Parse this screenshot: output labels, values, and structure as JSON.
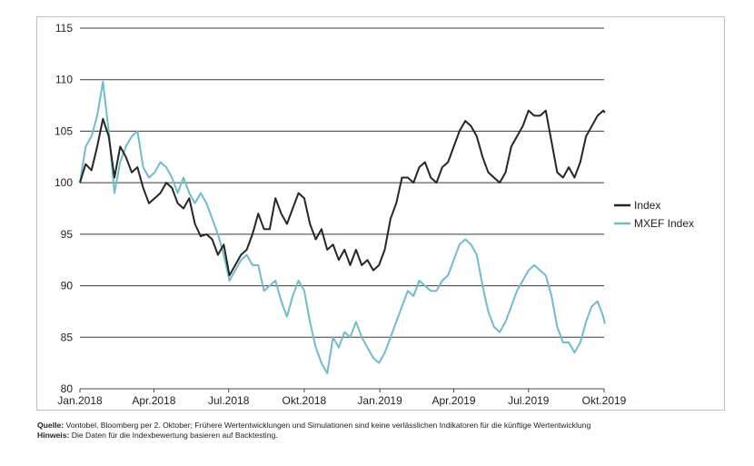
{
  "chart_data": {
    "type": "line",
    "title": "",
    "xlabel": "",
    "ylabel": "",
    "ylim": [
      80,
      115
    ],
    "y_ticks": [
      80,
      85,
      90,
      95,
      100,
      105,
      110,
      115
    ],
    "x_tick_labels": [
      "Jan.2018",
      "Apr.2018",
      "Jul.2018",
      "Okt.2018",
      "Jan.2019",
      "Apr.2019",
      "Jul.2019",
      "Okt.2019"
    ],
    "x_tick_dates": [
      "2018-01-01",
      "2018-04-01",
      "2018-07-01",
      "2018-10-01",
      "2019-01-01",
      "2019-04-01",
      "2019-07-01",
      "2019-10-01"
    ],
    "grid": "horizontal",
    "legend_position": "right",
    "series": [
      {
        "name": "Index",
        "color": "#262626",
        "points": [
          [
            "2018-01-01",
            100.0
          ],
          [
            "2018-01-08",
            101.8
          ],
          [
            "2018-01-15",
            101.2
          ],
          [
            "2018-01-22",
            103.5
          ],
          [
            "2018-01-29",
            106.2
          ],
          [
            "2018-02-05",
            104.5
          ],
          [
            "2018-02-12",
            100.5
          ],
          [
            "2018-02-19",
            103.5
          ],
          [
            "2018-02-26",
            102.5
          ],
          [
            "2018-03-05",
            101.0
          ],
          [
            "2018-03-12",
            101.5
          ],
          [
            "2018-03-19",
            99.5
          ],
          [
            "2018-03-26",
            98.0
          ],
          [
            "2018-04-02",
            98.5
          ],
          [
            "2018-04-09",
            99.0
          ],
          [
            "2018-04-16",
            100.0
          ],
          [
            "2018-04-23",
            99.5
          ],
          [
            "2018-04-30",
            98.0
          ],
          [
            "2018-05-07",
            97.5
          ],
          [
            "2018-05-14",
            98.5
          ],
          [
            "2018-05-21",
            96.0
          ],
          [
            "2018-05-28",
            94.8
          ],
          [
            "2018-06-04",
            95.0
          ],
          [
            "2018-06-11",
            94.5
          ],
          [
            "2018-06-18",
            93.0
          ],
          [
            "2018-06-25",
            94.0
          ],
          [
            "2018-07-02",
            91.0
          ],
          [
            "2018-07-09",
            92.0
          ],
          [
            "2018-07-16",
            93.0
          ],
          [
            "2018-07-23",
            93.5
          ],
          [
            "2018-07-30",
            95.0
          ],
          [
            "2018-08-06",
            97.0
          ],
          [
            "2018-08-13",
            95.5
          ],
          [
            "2018-08-20",
            95.5
          ],
          [
            "2018-08-27",
            98.5
          ],
          [
            "2018-09-03",
            97.0
          ],
          [
            "2018-09-10",
            96.0
          ],
          [
            "2018-09-17",
            97.5
          ],
          [
            "2018-09-24",
            99.0
          ],
          [
            "2018-10-01",
            98.5
          ],
          [
            "2018-10-08",
            96.0
          ],
          [
            "2018-10-15",
            94.5
          ],
          [
            "2018-10-22",
            95.5
          ],
          [
            "2018-10-29",
            93.5
          ],
          [
            "2018-11-05",
            94.0
          ],
          [
            "2018-11-12",
            92.5
          ],
          [
            "2018-11-19",
            93.5
          ],
          [
            "2018-11-26",
            92.0
          ],
          [
            "2018-12-03",
            93.5
          ],
          [
            "2018-12-10",
            92.0
          ],
          [
            "2018-12-17",
            92.5
          ],
          [
            "2018-12-24",
            91.5
          ],
          [
            "2018-12-31",
            92.0
          ],
          [
            "2019-01-07",
            93.5
          ],
          [
            "2019-01-14",
            96.5
          ],
          [
            "2019-01-21",
            98.0
          ],
          [
            "2019-01-28",
            100.5
          ],
          [
            "2019-02-04",
            100.5
          ],
          [
            "2019-02-11",
            100.0
          ],
          [
            "2019-02-18",
            101.5
          ],
          [
            "2019-02-25",
            102.0
          ],
          [
            "2019-03-04",
            100.5
          ],
          [
            "2019-03-11",
            100.0
          ],
          [
            "2019-03-18",
            101.5
          ],
          [
            "2019-03-25",
            102.0
          ],
          [
            "2019-04-01",
            103.5
          ],
          [
            "2019-04-08",
            105.0
          ],
          [
            "2019-04-15",
            106.0
          ],
          [
            "2019-04-22",
            105.5
          ],
          [
            "2019-04-29",
            104.5
          ],
          [
            "2019-05-06",
            102.5
          ],
          [
            "2019-05-13",
            101.0
          ],
          [
            "2019-05-20",
            100.5
          ],
          [
            "2019-05-27",
            100.0
          ],
          [
            "2019-06-03",
            101.0
          ],
          [
            "2019-06-10",
            103.5
          ],
          [
            "2019-06-17",
            104.5
          ],
          [
            "2019-06-24",
            105.5
          ],
          [
            "2019-07-01",
            107.0
          ],
          [
            "2019-07-08",
            106.5
          ],
          [
            "2019-07-15",
            106.5
          ],
          [
            "2019-07-22",
            107.0
          ],
          [
            "2019-07-29",
            104.0
          ],
          [
            "2019-08-05",
            101.0
          ],
          [
            "2019-08-12",
            100.5
          ],
          [
            "2019-08-19",
            101.5
          ],
          [
            "2019-08-26",
            100.5
          ],
          [
            "2019-09-02",
            102.0
          ],
          [
            "2019-09-09",
            104.5
          ],
          [
            "2019-09-16",
            105.5
          ],
          [
            "2019-09-23",
            106.5
          ],
          [
            "2019-09-30",
            107.0
          ],
          [
            "2019-10-02",
            106.8
          ]
        ]
      },
      {
        "name": "MXEF Index",
        "color": "#6fbccb",
        "points": [
          [
            "2018-01-01",
            100.0
          ],
          [
            "2018-01-08",
            103.5
          ],
          [
            "2018-01-15",
            104.5
          ],
          [
            "2018-01-22",
            106.5
          ],
          [
            "2018-01-29",
            109.8
          ],
          [
            "2018-02-05",
            105.0
          ],
          [
            "2018-02-12",
            99.0
          ],
          [
            "2018-02-19",
            102.0
          ],
          [
            "2018-02-26",
            103.5
          ],
          [
            "2018-03-05",
            104.5
          ],
          [
            "2018-03-12",
            105.0
          ],
          [
            "2018-03-19",
            101.5
          ],
          [
            "2018-03-26",
            100.5
          ],
          [
            "2018-04-02",
            101.0
          ],
          [
            "2018-04-09",
            102.0
          ],
          [
            "2018-04-16",
            101.5
          ],
          [
            "2018-04-23",
            100.5
          ],
          [
            "2018-04-30",
            99.0
          ],
          [
            "2018-05-07",
            100.5
          ],
          [
            "2018-05-14",
            99.0
          ],
          [
            "2018-05-21",
            98.0
          ],
          [
            "2018-05-28",
            99.0
          ],
          [
            "2018-06-04",
            98.0
          ],
          [
            "2018-06-11",
            96.5
          ],
          [
            "2018-06-18",
            95.0
          ],
          [
            "2018-06-25",
            93.0
          ],
          [
            "2018-07-02",
            90.5
          ],
          [
            "2018-07-09",
            91.5
          ],
          [
            "2018-07-16",
            92.5
          ],
          [
            "2018-07-23",
            93.0
          ],
          [
            "2018-07-30",
            92.0
          ],
          [
            "2018-08-06",
            92.0
          ],
          [
            "2018-08-13",
            89.5
          ],
          [
            "2018-08-20",
            90.0
          ],
          [
            "2018-08-27",
            90.5
          ],
          [
            "2018-09-03",
            88.5
          ],
          [
            "2018-09-10",
            87.0
          ],
          [
            "2018-09-17",
            89.0
          ],
          [
            "2018-09-24",
            90.5
          ],
          [
            "2018-10-01",
            89.5
          ],
          [
            "2018-10-08",
            86.5
          ],
          [
            "2018-10-15",
            84.0
          ],
          [
            "2018-10-22",
            82.5
          ],
          [
            "2018-10-29",
            81.5
          ],
          [
            "2018-11-05",
            85.0
          ],
          [
            "2018-11-12",
            84.0
          ],
          [
            "2018-11-19",
            85.5
          ],
          [
            "2018-11-26",
            85.0
          ],
          [
            "2018-12-03",
            86.5
          ],
          [
            "2018-12-10",
            85.0
          ],
          [
            "2018-12-17",
            84.0
          ],
          [
            "2018-12-24",
            83.0
          ],
          [
            "2018-12-31",
            82.5
          ],
          [
            "2019-01-07",
            83.5
          ],
          [
            "2019-01-14",
            85.0
          ],
          [
            "2019-01-21",
            86.5
          ],
          [
            "2019-01-28",
            88.0
          ],
          [
            "2019-02-04",
            89.5
          ],
          [
            "2019-02-11",
            89.0
          ],
          [
            "2019-02-18",
            90.5
          ],
          [
            "2019-02-25",
            90.0
          ],
          [
            "2019-03-04",
            89.5
          ],
          [
            "2019-03-11",
            89.5
          ],
          [
            "2019-03-18",
            90.5
          ],
          [
            "2019-03-25",
            91.0
          ],
          [
            "2019-04-01",
            92.5
          ],
          [
            "2019-04-08",
            94.0
          ],
          [
            "2019-04-15",
            94.5
          ],
          [
            "2019-04-22",
            94.0
          ],
          [
            "2019-04-29",
            93.0
          ],
          [
            "2019-05-06",
            90.0
          ],
          [
            "2019-05-13",
            87.5
          ],
          [
            "2019-05-20",
            86.0
          ],
          [
            "2019-05-27",
            85.5
          ],
          [
            "2019-06-03",
            86.5
          ],
          [
            "2019-06-10",
            88.0
          ],
          [
            "2019-06-17",
            89.5
          ],
          [
            "2019-06-24",
            90.5
          ],
          [
            "2019-07-01",
            91.5
          ],
          [
            "2019-07-08",
            92.0
          ],
          [
            "2019-07-15",
            91.5
          ],
          [
            "2019-07-22",
            91.0
          ],
          [
            "2019-07-29",
            89.0
          ],
          [
            "2019-08-05",
            86.0
          ],
          [
            "2019-08-12",
            84.5
          ],
          [
            "2019-08-19",
            84.5
          ],
          [
            "2019-08-26",
            83.5
          ],
          [
            "2019-09-02",
            84.5
          ],
          [
            "2019-09-09",
            86.5
          ],
          [
            "2019-09-16",
            88.0
          ],
          [
            "2019-09-23",
            88.5
          ],
          [
            "2019-09-30",
            87.0
          ],
          [
            "2019-10-02",
            86.3
          ]
        ]
      }
    ]
  },
  "footnotes": {
    "source_label": "Quelle:",
    "source_text": " Vontobel, Bloomberg per 2. Oktober; Frühere Wertentwicklungen und Simulationen sind keine verlässlichen Indikatoren für die künftige Wertentwicklung",
    "note_label": "Hinweis:",
    "note_text": " Die Daten für die Indexbewertung basieren auf Backtesting."
  }
}
